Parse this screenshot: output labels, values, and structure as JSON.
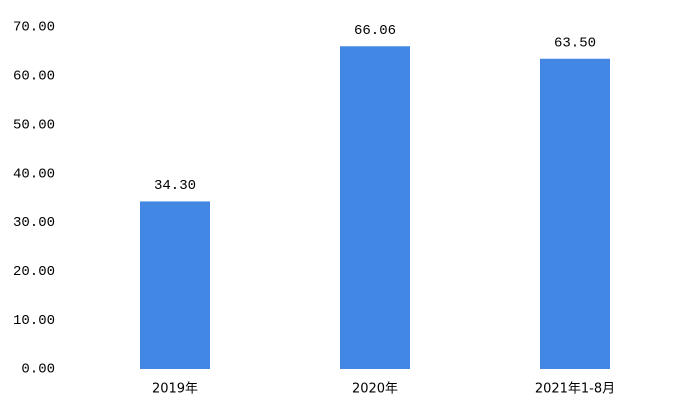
{
  "chart_data": {
    "type": "bar",
    "categories": [
      "2019年",
      "2020年",
      "2021年1-8月"
    ],
    "values": [
      34.3,
      66.06,
      63.5
    ],
    "value_labels": [
      "34.30",
      "66.06",
      "63.50"
    ],
    "color": "#4287e3",
    "ylim": [
      0,
      70
    ],
    "yticks": [
      {
        "value": 0,
        "label": "0.00"
      },
      {
        "value": 10,
        "label": "10.00"
      },
      {
        "value": 20,
        "label": "20.00"
      },
      {
        "value": 30,
        "label": "30.00"
      },
      {
        "value": 40,
        "label": "40.00"
      },
      {
        "value": 50,
        "label": "50.00"
      },
      {
        "value": 60,
        "label": "60.00"
      },
      {
        "value": 70,
        "label": "70.00"
      }
    ],
    "grid": false
  }
}
